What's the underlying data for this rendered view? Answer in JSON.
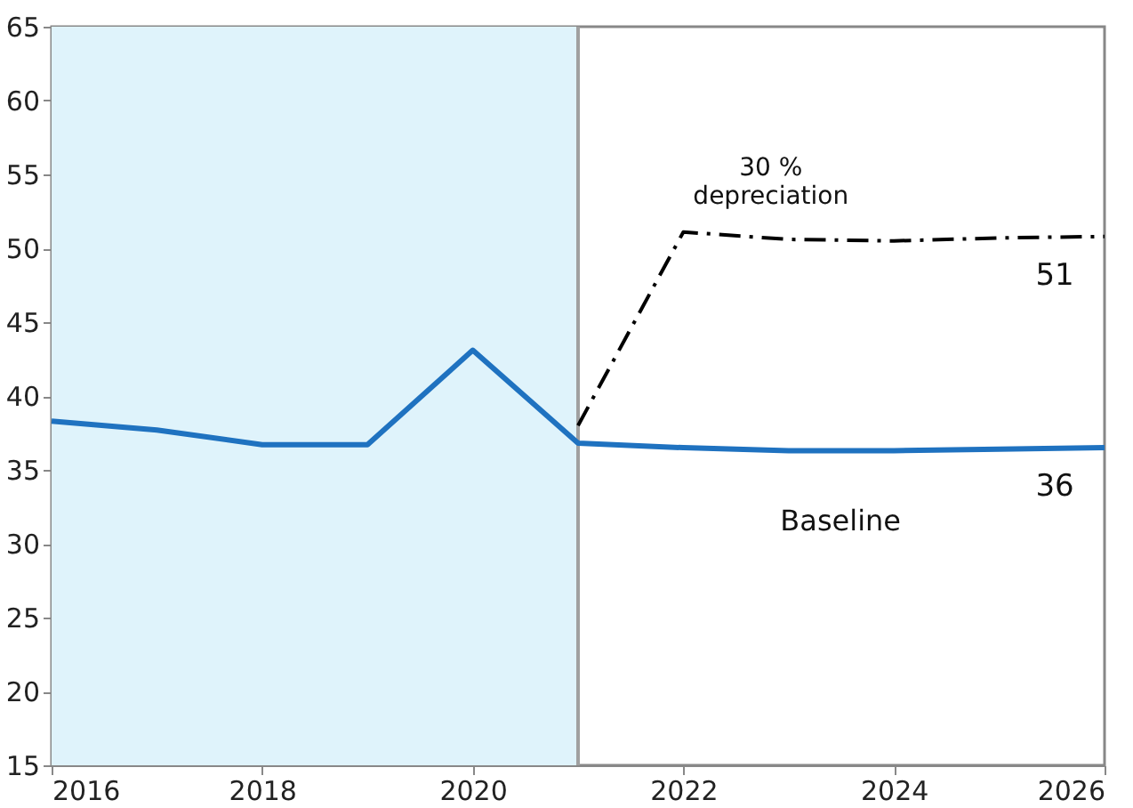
{
  "chart_data": {
    "type": "line",
    "x": [
      2016,
      2017,
      2018,
      2019,
      2020,
      2021,
      2022,
      2023,
      2024,
      2025,
      2026
    ],
    "series": [
      {
        "name": "Baseline",
        "color": "#1f72c0",
        "line_style": "solid",
        "values": [
          38.3,
          37.7,
          36.7,
          36.7,
          43.1,
          36.8,
          36.5,
          36.3,
          36.3,
          36.4,
          36.5
        ],
        "value_labels": [
          null,
          null,
          null,
          null,
          null,
          null,
          null,
          null,
          null,
          null,
          "36"
        ]
      },
      {
        "name": "30 %\ndepreciation",
        "color": "#000000",
        "line_style": "dashed",
        "x": [
          2021,
          2022,
          2023,
          2024,
          2025,
          2026
        ],
        "values": [
          38,
          51.1,
          50.6,
          50.5,
          50.7,
          50.8
        ],
        "value_labels": [
          null,
          null,
          null,
          null,
          null,
          "51"
        ]
      }
    ],
    "xlim": [
      2016,
      2026
    ],
    "xticks": [
      2016,
      2018,
      2020,
      2022,
      2024,
      2026
    ],
    "ylim": [
      15,
      65
    ],
    "yticks": [
      15,
      20,
      25,
      30,
      35,
      40,
      45,
      50,
      55,
      60,
      65
    ],
    "bands": [
      {
        "axis": "x",
        "from": 2016,
        "to": 2021,
        "color": "#dff3fb"
      }
    ],
    "ref_lines": [
      {
        "axis": "x",
        "value": 2021,
        "color": "#a0a0a0",
        "line_style": "solid"
      }
    ],
    "grid": false,
    "marker": "none"
  }
}
